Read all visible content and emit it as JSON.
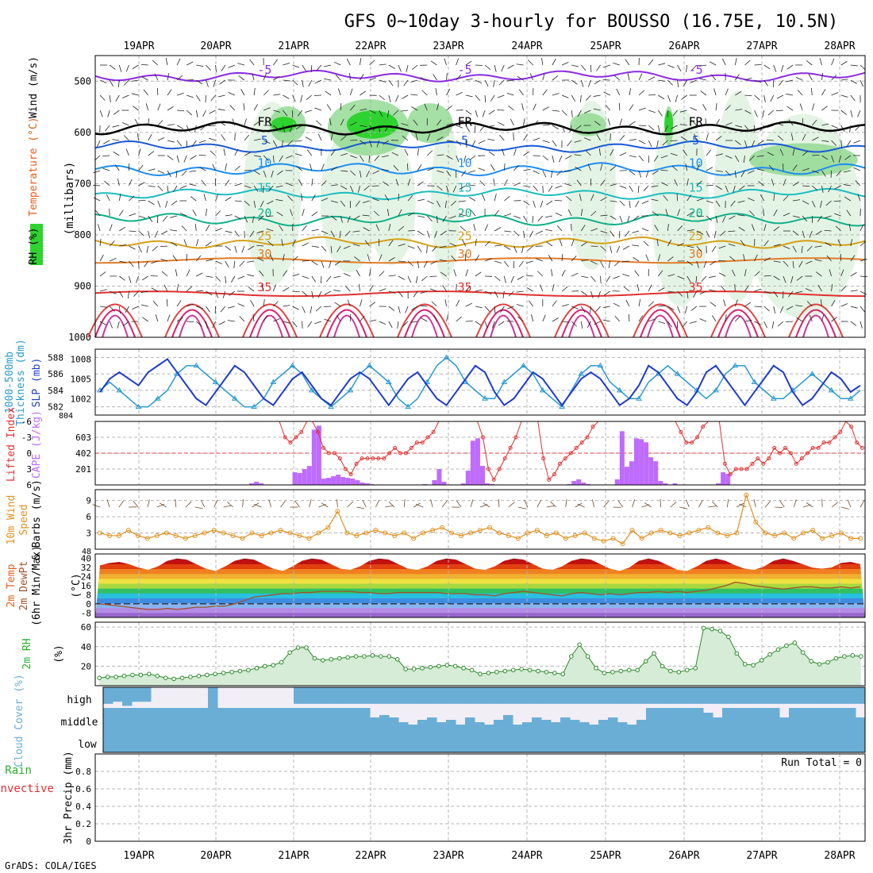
{
  "header": {
    "title": "GFS 0~10day 3-hourly for BOUSSO (16.75E, 10.5N)",
    "credit": "GrADS: COLA/IGES"
  },
  "dates": [
    "19APR",
    "20APR",
    "21APR",
    "22APR",
    "23APR",
    "24APR",
    "25APR",
    "26APR",
    "27APR",
    "28APR"
  ],
  "colors": {
    "grid": "#b4b4b4",
    "rh_green": "#2fd32f",
    "fill_light": "#e4f4e4",
    "cloud_blue": "#6aaed6",
    "temp_dark": "#cc3399"
  },
  "chart_data": [
    {
      "type": "contour",
      "panel": "upper_air",
      "ylabel_parts": [
        "RH (%)",
        "Temperature (°C)",
        "Wind (m/s)",
        "(millibars)"
      ],
      "yticks": [
        500,
        600,
        700,
        800,
        900,
        1000
      ],
      "ylim": [
        450,
        1000
      ],
      "isotherms": [
        {
          "label": "-5",
          "level": 490,
          "color": "#8a2be2"
        },
        {
          "label": "FR",
          "level": 592,
          "color": "#000000"
        },
        {
          "label": "5",
          "level": 628,
          "color": "#1a5ad6"
        },
        {
          "label": "10",
          "level": 672,
          "color": "#1f8ef0"
        },
        {
          "label": "15",
          "level": 720,
          "color": "#1bbdc0"
        },
        {
          "label": "20",
          "level": 770,
          "color": "#10b08a"
        },
        {
          "label": "25",
          "level": 815,
          "color": "#d4a017"
        },
        {
          "label": "30",
          "level": 850,
          "color": "#e07b28"
        },
        {
          "label": "35",
          "level": 915,
          "color": "#e03030"
        }
      ],
      "rh_labels": [
        "30",
        "50"
      ]
    },
    {
      "type": "line",
      "panel": "thickness_slp",
      "ylabel_left": "1000-500mb Thickness (dm)",
      "ylabel_right": "SLP (mb)",
      "yticks_left": [
        582,
        584,
        586,
        588
      ],
      "yticks_right": [
        1002,
        1005,
        1008
      ],
      "extra_tick": "804",
      "series": [
        {
          "name": "Thickness",
          "color": "#2a9ad0",
          "values": [
            584,
            585,
            584,
            583,
            582,
            582,
            583,
            584,
            586,
            587,
            587,
            586,
            585,
            584,
            583,
            582,
            582,
            583,
            585,
            586,
            587,
            586,
            584,
            583,
            582,
            583,
            584,
            586,
            587,
            586,
            585,
            583,
            582,
            583,
            585,
            587,
            588,
            587,
            585,
            584,
            583,
            583,
            585,
            586,
            587,
            586,
            584,
            583,
            582,
            584,
            586,
            587,
            587,
            585,
            584,
            583,
            583,
            585,
            586,
            587,
            586,
            585,
            584,
            583,
            584,
            586,
            587,
            587,
            585,
            584,
            583,
            583,
            584,
            585,
            586,
            585,
            584,
            583,
            583,
            584
          ]
        },
        {
          "name": "SLP",
          "color": "#1e3cc8",
          "values": [
            1003,
            1005,
            1006,
            1005,
            1004,
            1006,
            1007,
            1008,
            1006,
            1004,
            1002,
            1001,
            1003,
            1005,
            1007,
            1006,
            1004,
            1002,
            1001,
            1003,
            1005,
            1006,
            1004,
            1002,
            1001,
            1003,
            1005,
            1006,
            1005,
            1003,
            1001,
            1003,
            1005,
            1006,
            1004,
            1002,
            1001,
            1003,
            1005,
            1007,
            1006,
            1003,
            1001,
            1002,
            1004,
            1006,
            1005,
            1003,
            1001,
            1003,
            1005,
            1006,
            1005,
            1003,
            1001,
            1002,
            1004,
            1007,
            1006,
            1004,
            1002,
            1001,
            1003,
            1006,
            1007,
            1005,
            1003,
            1001,
            1003,
            1005,
            1007,
            1006,
            1003,
            1001,
            1002,
            1004,
            1006,
            1005,
            1003,
            1004
          ]
        }
      ]
    },
    {
      "type": "bar+line",
      "panel": "cape_li",
      "ylabel_left": "Lifted Index",
      "ylabel_right": "CAPE (J/kg)",
      "yticks_left": [
        "-6",
        "-3",
        "0",
        "3",
        "6"
      ],
      "yticks_right": [
        201,
        402,
        603
      ],
      "cape": [
        0,
        0,
        0,
        0,
        0,
        0,
        0,
        0,
        0,
        0,
        0,
        0,
        0,
        0,
        0,
        0,
        0,
        0,
        0,
        0,
        0,
        0,
        0,
        0,
        0,
        0,
        0,
        0,
        0,
        0,
        0,
        0,
        20,
        40,
        20,
        0,
        0,
        0,
        0,
        0,
        0,
        160,
        150,
        200,
        240,
        700,
        750,
        80,
        90,
        110,
        130,
        100,
        90,
        80,
        60,
        30,
        20,
        10,
        0,
        0,
        0,
        0,
        0,
        0,
        0,
        0,
        0,
        0,
        10,
        0,
        60,
        200,
        40,
        0,
        0,
        0,
        20,
        180,
        560,
        590,
        240,
        20,
        10,
        0,
        0,
        0,
        0,
        0,
        0,
        0,
        0,
        0,
        0,
        0,
        0,
        0,
        0,
        0,
        10,
        50,
        70,
        30,
        10,
        0,
        0,
        0,
        0,
        0,
        70,
        680,
        230,
        300,
        590,
        580,
        540,
        350,
        300,
        50,
        20,
        0,
        20,
        0,
        0,
        0,
        0,
        0,
        0,
        0,
        0,
        20,
        160,
        140,
        0,
        0,
        0,
        0,
        0,
        0,
        0,
        0,
        0,
        0,
        0,
        0,
        0,
        0,
        0,
        0,
        0,
        0,
        0,
        0,
        0,
        0,
        0,
        0,
        0,
        0,
        0,
        0,
        0,
        0,
        0,
        0,
        0,
        0,
        0,
        0,
        0,
        0,
        0,
        0,
        0,
        0,
        0,
        0,
        0,
        0,
        0,
        0,
        0,
        0,
        0,
        0,
        0,
        0,
        0,
        0,
        0,
        0,
        0,
        0,
        0,
        0,
        0,
        0,
        0,
        0,
        0,
        0,
        0,
        0,
        0,
        0,
        0,
        0,
        0,
        0,
        0,
        0,
        0,
        0,
        0,
        0,
        0,
        0,
        0,
        0,
        0,
        0,
        0,
        0,
        0,
        0,
        0,
        0,
        0,
        0,
        0,
        0,
        0,
        0,
        0,
        0,
        0,
        0,
        0,
        0,
        0,
        0,
        0,
        0,
        0,
        0,
        0,
        0,
        0,
        0,
        0,
        0,
        0,
        0,
        0,
        0,
        0,
        0,
        0,
        0,
        0,
        0,
        0,
        0,
        0,
        0,
        0,
        0,
        0,
        0,
        0,
        0,
        0,
        0,
        0,
        0,
        0,
        0,
        0,
        0,
        0,
        0,
        0,
        0,
        0,
        0,
        0,
        0,
        0
      ],
      "li": [
        6,
        6,
        6,
        6,
        6,
        6,
        6,
        6,
        6,
        6,
        6,
        6,
        6,
        6,
        6,
        6,
        6,
        6,
        6,
        6,
        6,
        6,
        6,
        6,
        6,
        6,
        6,
        6,
        6,
        6,
        6,
        6,
        6,
        6,
        3,
        2,
        3,
        4,
        6,
        6,
        4,
        1,
        0,
        0,
        -1,
        -3,
        -4,
        -2,
        -1,
        -1,
        -1,
        -1,
        -1,
        0,
        1,
        0,
        0,
        1,
        2,
        2,
        3,
        4,
        6,
        6,
        6,
        6,
        6,
        6,
        6,
        6,
        3,
        -3,
        -5,
        -3,
        -1,
        1,
        3,
        6,
        6,
        6,
        6,
        -1,
        -5,
        -4,
        -2,
        -1,
        0,
        1,
        2,
        3,
        5,
        6,
        6,
        6,
        6,
        6,
        6,
        6,
        6,
        6,
        6,
        6,
        6,
        6,
        6,
        6,
        4,
        2,
        2,
        3,
        5,
        6,
        6,
        6,
        -2,
        -4,
        -3,
        -3,
        -3,
        -2,
        -1,
        -2,
        -1,
        1,
        0,
        1,
        0,
        -2,
        -1,
        0,
        1,
        1,
        2,
        2,
        3,
        4,
        6,
        5,
        2,
        1
      ]
    },
    {
      "type": "line",
      "panel": "wind10m",
      "ylabel": "10m Wind Speed & Barbs (m/s)",
      "yticks": [
        3,
        6,
        9
      ],
      "extra_tick": "48",
      "values": [
        3,
        2.5,
        2.5,
        3.5,
        2.5,
        2,
        2.5,
        3,
        2.5,
        2,
        2.5,
        3,
        3.5,
        3,
        2.5,
        2,
        3,
        2.5,
        3,
        3.5,
        3,
        2.5,
        2,
        3,
        4,
        7,
        3,
        2.5,
        3,
        3.5,
        3,
        2.5,
        3,
        2,
        3,
        3.5,
        4,
        3,
        2.5,
        3,
        3.5,
        4,
        3,
        2.5,
        2,
        3,
        3.5,
        2.5,
        3,
        2,
        2.5,
        3,
        2,
        1.5,
        2,
        1,
        3.5,
        2,
        3,
        3.5,
        3,
        2.5,
        3,
        3.5,
        4,
        3,
        2.5,
        3,
        10,
        5,
        3,
        2.5,
        3,
        2,
        3,
        3.5,
        2,
        2.5,
        3,
        2,
        2
      ]
    },
    {
      "type": "area",
      "panel": "temp2m",
      "ylabel": "2m Temp 2m DewPt (6hr Min/Max) (°C)",
      "yticks": [
        0,
        8,
        16,
        24,
        32,
        40
      ],
      "ytick_labels": [
        "-8",
        "0",
        "8",
        "16",
        "24",
        "32",
        "40"
      ],
      "temp": [
        34,
        36,
        37,
        35,
        32,
        30,
        33,
        38,
        40,
        39,
        35,
        31,
        29,
        33,
        38,
        40,
        39,
        35,
        31,
        29,
        33,
        38,
        40,
        39,
        35,
        31,
        30,
        33,
        38,
        40,
        39,
        35,
        31,
        30,
        33,
        38,
        40,
        39,
        35,
        31,
        30,
        33,
        38,
        40,
        39,
        35,
        31,
        30,
        33,
        38,
        40,
        39,
        35,
        31,
        29,
        32,
        38,
        40,
        38,
        34,
        30,
        29,
        33,
        38,
        40,
        38,
        34,
        31,
        30,
        33,
        38,
        40,
        38,
        35,
        32,
        31,
        32,
        36,
        37,
        35
      ],
      "dewpt": [
        0,
        -1,
        -2,
        -3,
        -4,
        -5,
        -5,
        -4,
        -5,
        -4,
        -3,
        -3,
        -2,
        -2,
        0,
        3,
        6,
        7,
        8,
        9,
        9,
        10,
        10,
        11,
        11,
        11,
        11,
        10,
        10,
        9,
        9,
        10,
        10,
        10,
        10,
        10,
        9,
        9,
        9,
        8,
        8,
        7,
        9,
        10,
        11,
        10,
        9,
        8,
        7,
        9,
        10,
        9,
        8,
        9,
        8,
        9,
        10,
        10,
        11,
        10,
        11,
        10,
        11,
        12,
        14,
        16,
        19,
        18,
        16,
        15,
        14,
        13,
        14,
        15,
        15,
        14,
        14,
        15,
        14,
        15
      ]
    },
    {
      "type": "area",
      "panel": "rh2m",
      "ylabel": "2m RH (%)",
      "yticks": [
        20,
        40,
        60
      ],
      "values": [
        8,
        9,
        9,
        10,
        11,
        11,
        12,
        10,
        8,
        7,
        8,
        9,
        10,
        11,
        12,
        13,
        14,
        15,
        16,
        18,
        20,
        21,
        24,
        34,
        39,
        39,
        28,
        26,
        27,
        28,
        29,
        30,
        30,
        31,
        30,
        30,
        27,
        17,
        17,
        18,
        19,
        20,
        21,
        20,
        18,
        16,
        12,
        13,
        14,
        15,
        16,
        17,
        16,
        15,
        14,
        13,
        12,
        30,
        42,
        30,
        18,
        13,
        14,
        15,
        16,
        16,
        25,
        33,
        20,
        15,
        14,
        16,
        18,
        59,
        58,
        56,
        50,
        33,
        22,
        21,
        26,
        32,
        37,
        41,
        44,
        34,
        25,
        22,
        24,
        28,
        30,
        31,
        30
      ]
    },
    {
      "type": "bar",
      "panel": "cloud_cover",
      "ylabel": "Cloud Cover (%)",
      "categories": [
        "high",
        "middle",
        "low"
      ],
      "high": [
        80,
        70,
        90,
        70,
        70,
        0,
        0,
        0,
        0,
        0,
        0,
        100,
        0,
        0,
        0,
        0,
        0,
        0,
        0,
        0,
        80,
        80,
        80,
        80,
        80,
        80,
        80,
        80,
        80,
        80,
        80,
        80,
        80,
        80,
        80,
        80,
        80,
        80,
        80,
        80,
        80,
        80,
        80,
        80,
        80,
        80,
        80,
        80,
        80,
        80,
        80,
        80,
        80,
        80,
        80,
        80,
        80,
        80,
        80,
        80,
        80,
        80,
        80,
        80,
        80,
        80,
        80,
        80,
        80,
        80,
        80,
        80,
        80,
        80,
        80,
        80,
        80,
        80,
        80,
        80
      ],
      "middle": [
        100,
        100,
        100,
        100,
        100,
        100,
        100,
        100,
        100,
        100,
        100,
        100,
        100,
        100,
        100,
        100,
        100,
        100,
        100,
        100,
        100,
        100,
        100,
        100,
        100,
        100,
        100,
        100,
        60,
        70,
        60,
        40,
        30,
        50,
        60,
        40,
        50,
        30,
        60,
        40,
        30,
        50,
        70,
        30,
        40,
        60,
        50,
        40,
        60,
        50,
        40,
        30,
        50,
        60,
        40,
        30,
        50,
        100,
        100,
        100,
        100,
        100,
        100,
        80,
        60,
        100,
        100,
        100,
        100,
        100,
        100,
        60,
        100,
        100,
        100,
        100,
        100,
        100,
        100,
        60
      ]
    },
    {
      "type": "bar",
      "panel": "precip",
      "ylabel_parts": [
        "Total / Rain",
        "Convective",
        "3hr Precip (mm)"
      ],
      "yticks": [
        0,
        0.2,
        0.4,
        0.6,
        0.8
      ],
      "ylim": [
        0,
        1
      ],
      "run_total_label": "Run Total = 0",
      "values": []
    }
  ]
}
